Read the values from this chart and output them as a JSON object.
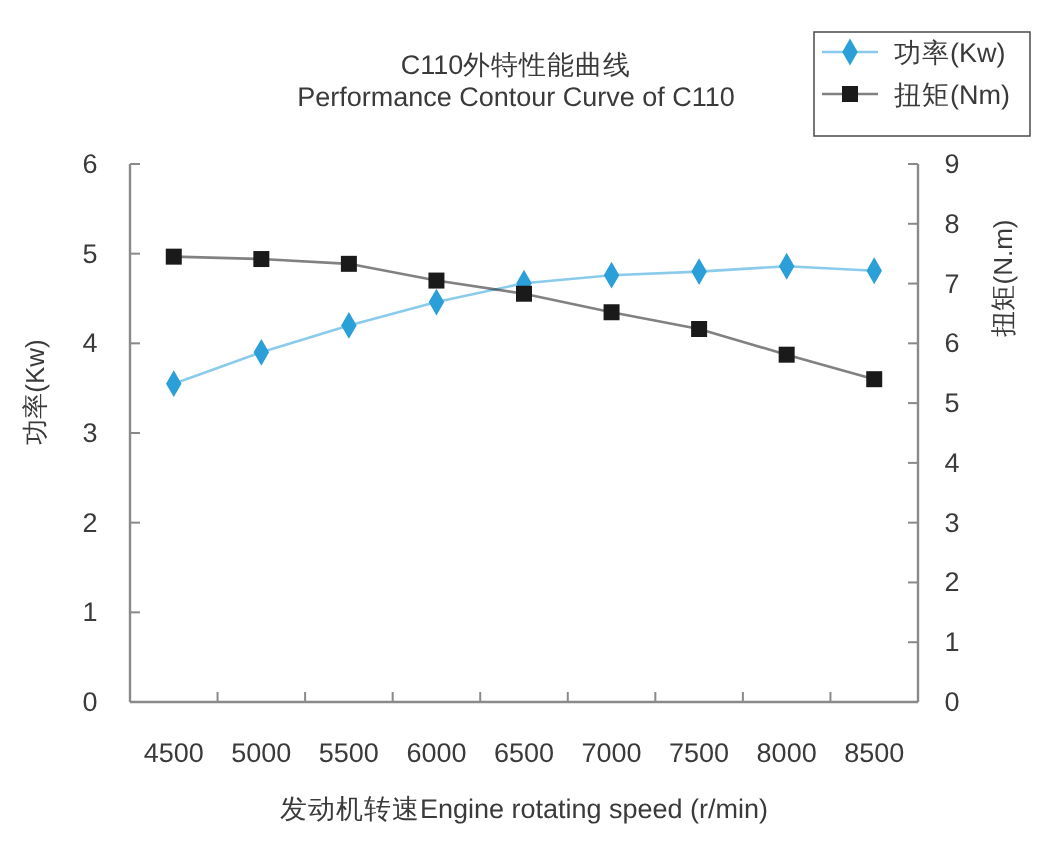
{
  "chart_data": {
    "type": "line",
    "title": "C110外特性能曲线",
    "subtitle": "Performance Contour Curve of C110",
    "xlabel": "发动机转速Engine rotating speed (r/min)",
    "ylabel": "功率(Kw)",
    "y2label": "扭矩(N.m)",
    "categories": [
      "4500",
      "5000",
      "5500",
      "6000",
      "6500",
      "7000",
      "7500",
      "8000",
      "8500"
    ],
    "series": [
      {
        "name": "功率(Kw)",
        "color": "#2a9fd8",
        "marker": "diamond",
        "values": [
          3.55,
          3.9,
          4.2,
          4.46,
          4.67,
          4.76,
          4.8,
          4.86,
          4.81
        ]
      },
      {
        "name": "扭矩(Nm)",
        "color": "#1a1a1a",
        "marker": "square",
        "axis": "y2",
        "values": [
          7.45,
          7.41,
          7.33,
          7.05,
          6.83,
          6.52,
          6.24,
          5.81,
          5.4
        ]
      }
    ],
    "ylim": [
      0,
      6
    ],
    "yticks": [
      0,
      1,
      2,
      3,
      4,
      5,
      6
    ],
    "y2lim": [
      0,
      9
    ],
    "y2ticks": [
      0,
      1,
      2,
      3,
      4,
      5,
      6,
      7,
      8,
      9
    ],
    "legend": "top right"
  }
}
